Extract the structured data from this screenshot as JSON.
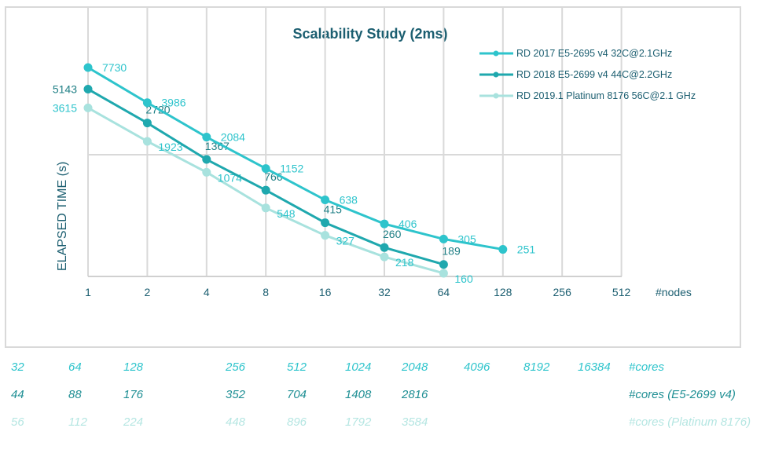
{
  "chart_data": {
    "type": "line",
    "title": "Scalability Study (2ms)",
    "xlabel": "#nodes",
    "ylabel": "ELAPSED TIME (s)",
    "x_scale": "log2",
    "y_scale": "log",
    "x_ticks": [
      "1",
      "2",
      "4",
      "8",
      "16",
      "32",
      "64",
      "128",
      "256",
      "512"
    ],
    "grid": true,
    "legend_position": "top-right",
    "series": [
      {
        "name": "RD 2017 E5-2695 v4 32C@2.1GHz",
        "color": "#2ec4cc",
        "x": [
          1,
          2,
          4,
          8,
          16,
          32,
          64,
          128
        ],
        "values": [
          7730,
          3986,
          2084,
          1152,
          638,
          406,
          305,
          251
        ]
      },
      {
        "name": "RD 2018 E5-2699 v4 44C@2.2GHz",
        "color": "#1fa8ae",
        "x": [
          1,
          2,
          4,
          8,
          16,
          32,
          64
        ],
        "values": [
          5143,
          2720,
          1367,
          766,
          415,
          260,
          189
        ]
      },
      {
        "name": "RD 2019.1 Platinum 8176 56C@2.1 GHz",
        "color": "#a8e2de",
        "x": [
          1,
          2,
          4,
          8,
          16,
          32,
          64
        ],
        "values": [
          3615,
          1923,
          1074,
          548,
          327,
          218,
          160
        ]
      }
    ]
  },
  "cores_rows": [
    {
      "label": "#cores",
      "color": "#2ec4cc",
      "values": [
        "32",
        "64",
        "128",
        "256",
        "512",
        "1024",
        "2048",
        "4096",
        "8192",
        "16384"
      ]
    },
    {
      "label": "#cores (E5-2699 v4)",
      "color": "#1f8f94",
      "values": [
        "44",
        "88",
        "176",
        "352",
        "704",
        "1408",
        "2816"
      ]
    },
    {
      "label": "#cores (Platinum 8176)",
      "color": "#b5e6e2",
      "values": [
        "56",
        "112",
        "224",
        "448",
        "896",
        "1792",
        "3584"
      ]
    }
  ]
}
